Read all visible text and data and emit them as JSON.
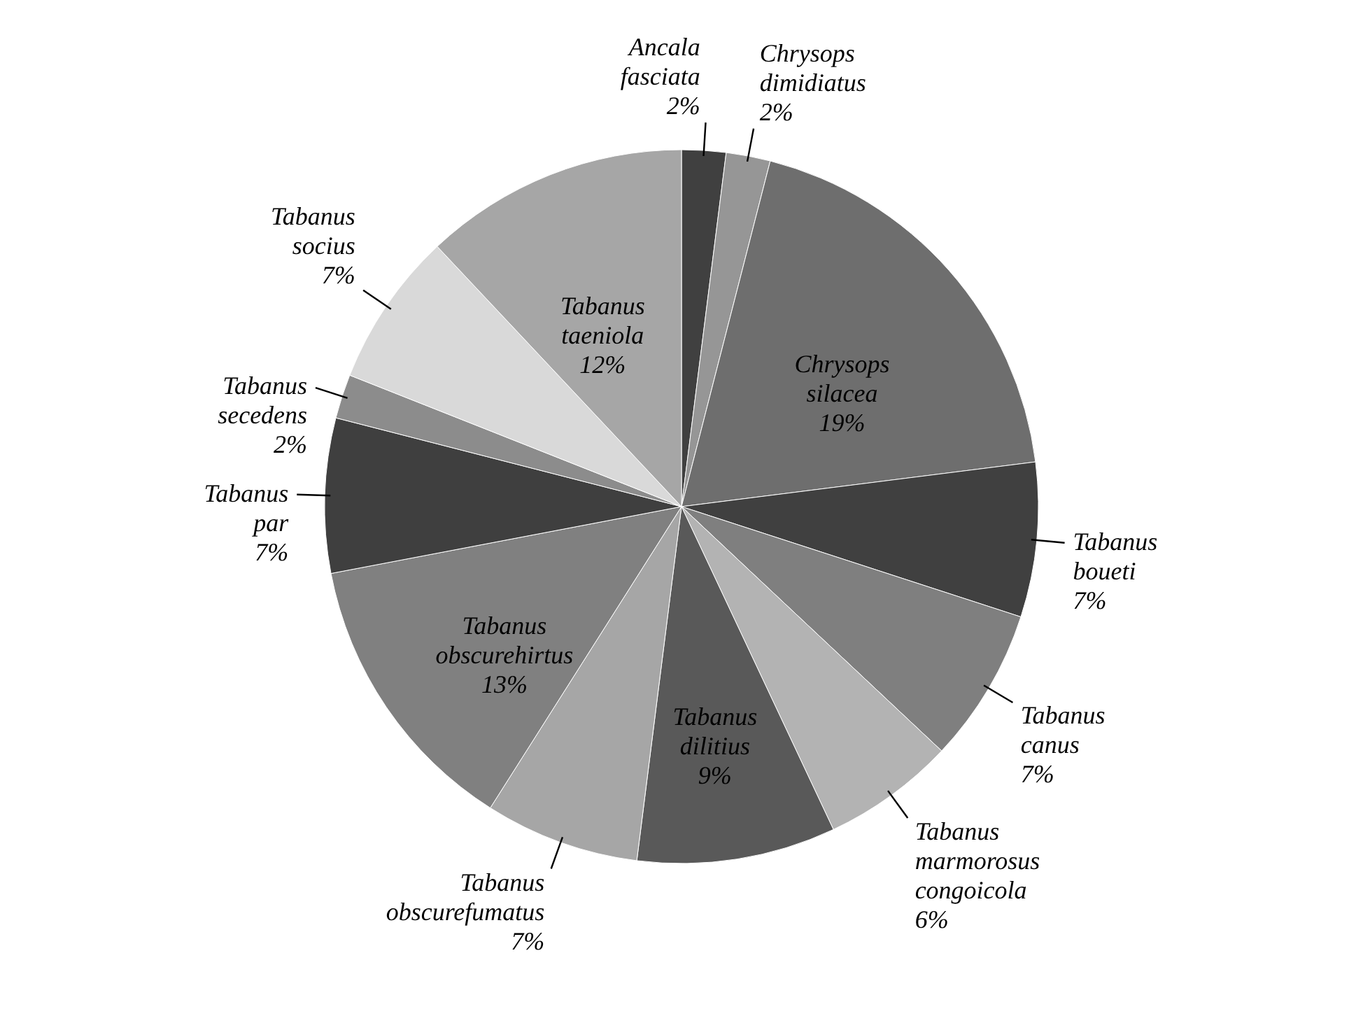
{
  "chart_data": {
    "type": "pie",
    "categories": [
      "Ancala fasciata",
      "Chrysops dimidiatus",
      "Chrysops silacea",
      "Tabanus boueti",
      "Tabanus canus",
      "Tabanus marmorosus congoicola",
      "Tabanus dilitius",
      "Tabanus obscurefumatus",
      "Tabanus obscurehirtus",
      "Tabanus par",
      "Tabanus secedens",
      "Tabanus socius",
      "Tabanus taeniola"
    ],
    "values": [
      2,
      2,
      19,
      7,
      7,
      6,
      9,
      7,
      13,
      7,
      2,
      7,
      12
    ],
    "value_labels": [
      "2%",
      "2%",
      "19%",
      "7%",
      "7%",
      "6%",
      "9%",
      "7%",
      "13%",
      "7%",
      "2%",
      "7%",
      "12%"
    ],
    "colors": [
      "#404040",
      "#969696",
      "#6e6e6e",
      "#404040",
      "#7f7f7f",
      "#b3b3b3",
      "#595959",
      "#a6a6a6",
      "#808080",
      "#3f3f3f",
      "#8c8c8c",
      "#d9d9d9",
      "#a6a6a6"
    ],
    "legend": false
  }
}
